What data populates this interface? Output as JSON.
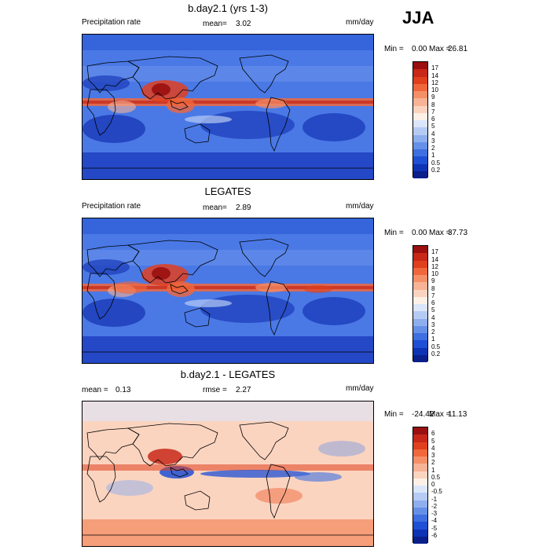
{
  "season": "JJA",
  "chart_data": [
    {
      "type": "heatmap",
      "title": "b.day2.1 (yrs 1-3)",
      "variable": "Precipitation rate",
      "mean_label": "mean=",
      "mean_value": "3.02",
      "units": "mm/day",
      "min_label": "Min =",
      "min_value": "0.00",
      "max_label": "Max =",
      "max_value": "26.81",
      "colorbar": {
        "levels": [
          "17",
          "14",
          "12",
          "10",
          "9",
          "8",
          "7",
          "6",
          "5",
          "4",
          "3",
          "2",
          "1",
          "0.5",
          "0.2"
        ],
        "colors": [
          "#9a0f0f",
          "#c82818",
          "#e0401e",
          "#f0673c",
          "#f58f68",
          "#f8b296",
          "#fbd4c0",
          "#fdf0e6",
          "#dbe6fa",
          "#b6cbf4",
          "#8eaeee",
          "#6690e8",
          "#3f6fe0",
          "#1f4fd4",
          "#0e33b4",
          "#0a1f8a"
        ]
      }
    },
    {
      "type": "heatmap",
      "title": "LEGATES",
      "variable": "Precipitation rate",
      "mean_label": "mean=",
      "mean_value": "2.89",
      "units": "mm/day",
      "min_label": "Min =",
      "min_value": "0.00",
      "max_label": "Max =",
      "max_value": "37.73",
      "colorbar": {
        "levels": [
          "17",
          "14",
          "12",
          "10",
          "9",
          "8",
          "7",
          "6",
          "5",
          "4",
          "3",
          "2",
          "1",
          "0.5",
          "0.2"
        ],
        "colors": [
          "#9a0f0f",
          "#c82818",
          "#e0401e",
          "#f0673c",
          "#f58f68",
          "#f8b296",
          "#fbd4c0",
          "#fdf0e6",
          "#dbe6fa",
          "#b6cbf4",
          "#8eaeee",
          "#6690e8",
          "#3f6fe0",
          "#1f4fd4",
          "#0e33b4",
          "#0a1f8a"
        ]
      }
    },
    {
      "type": "heatmap",
      "title": "b.day2.1 - LEGATES",
      "mean_label": "mean =",
      "mean_value": "0.13",
      "rmse_label": "rmse =",
      "rmse_value": "2.27",
      "units": "mm/day",
      "min_label": "Min =",
      "min_value": "-24.42",
      "max_label": "Max =",
      "max_value": "11.13",
      "colorbar": {
        "levels": [
          "6",
          "5",
          "4",
          "3",
          "2",
          "1",
          "0.5",
          "0",
          "-0.5",
          "-1",
          "-2",
          "-3",
          "-4",
          "-5",
          "-6"
        ],
        "colors": [
          "#9a0f0f",
          "#c82818",
          "#e0401e",
          "#f0673c",
          "#f58f68",
          "#f8b296",
          "#fbd4c0",
          "#fdf0e6",
          "#dbe6fa",
          "#b6cbf4",
          "#8eaeee",
          "#6690e8",
          "#3f6fe0",
          "#1f4fd4",
          "#0e33b4",
          "#0a1f8a"
        ]
      }
    }
  ]
}
